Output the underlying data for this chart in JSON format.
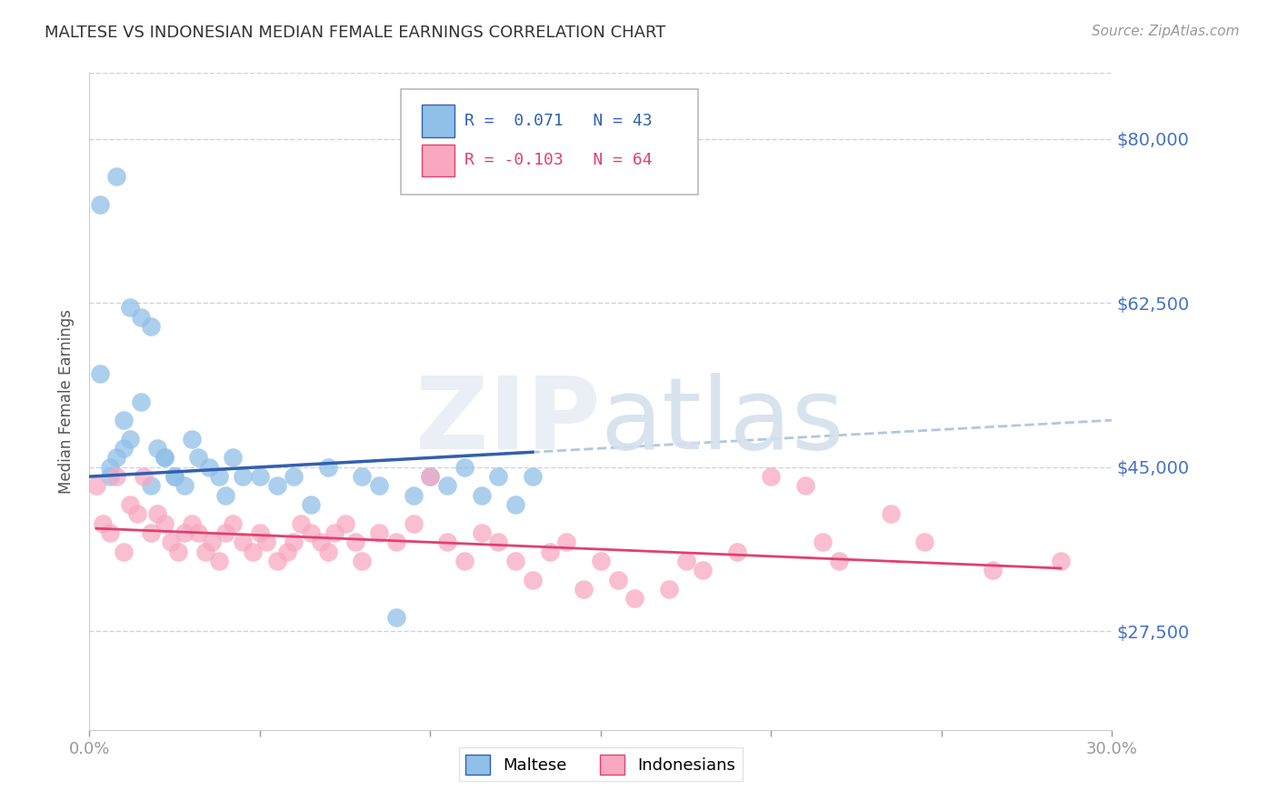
{
  "title": "MALTESE VS INDONESIAN MEDIAN FEMALE EARNINGS CORRELATION CHART",
  "source": "Source: ZipAtlas.com",
  "ylabel": "Median Female Earnings",
  "xlim": [
    0.0,
    0.3
  ],
  "ylim": [
    17000,
    87000
  ],
  "yticks": [
    27500,
    45000,
    62500,
    80000
  ],
  "ytick_labels": [
    "$27,500",
    "$45,000",
    "$62,500",
    "$80,000"
  ],
  "xticks": [
    0.0,
    0.05,
    0.1,
    0.15,
    0.2,
    0.25,
    0.3
  ],
  "xtick_labels": [
    "0.0%",
    "",
    "",
    "",
    "",
    "",
    "30.0%"
  ],
  "watermark": "ZIPatlas",
  "maltese_color": "#90c0e8",
  "indonesian_color": "#f8a8bf",
  "maltese_line_color": "#3060b0",
  "indonesian_line_color": "#e04070",
  "maltese_dashed_color": "#b0c8e0",
  "grid_color": "#c8d4e8",
  "right_label_color": "#4472c4",
  "maltese_scatter_x": [
    0.003,
    0.008,
    0.003,
    0.01,
    0.006,
    0.012,
    0.015,
    0.018,
    0.006,
    0.008,
    0.01,
    0.012,
    0.015,
    0.018,
    0.02,
    0.022,
    0.025,
    0.022,
    0.025,
    0.028,
    0.03,
    0.032,
    0.035,
    0.038,
    0.04,
    0.042,
    0.045,
    0.05,
    0.055,
    0.06,
    0.065,
    0.07,
    0.08,
    0.085,
    0.09,
    0.095,
    0.1,
    0.105,
    0.11,
    0.115,
    0.12,
    0.125,
    0.13
  ],
  "maltese_scatter_y": [
    73000,
    76000,
    55000,
    47000,
    44000,
    62000,
    61000,
    60000,
    45000,
    46000,
    50000,
    48000,
    52000,
    43000,
    47000,
    46000,
    44000,
    46000,
    44000,
    43000,
    48000,
    46000,
    45000,
    44000,
    42000,
    46000,
    44000,
    44000,
    43000,
    44000,
    41000,
    45000,
    44000,
    43000,
    29000,
    42000,
    44000,
    43000,
    45000,
    42000,
    44000,
    41000,
    44000
  ],
  "indonesian_scatter_x": [
    0.002,
    0.004,
    0.006,
    0.008,
    0.01,
    0.012,
    0.014,
    0.016,
    0.018,
    0.02,
    0.022,
    0.024,
    0.026,
    0.028,
    0.03,
    0.032,
    0.034,
    0.036,
    0.038,
    0.04,
    0.042,
    0.045,
    0.048,
    0.05,
    0.052,
    0.055,
    0.058,
    0.06,
    0.062,
    0.065,
    0.068,
    0.07,
    0.072,
    0.075,
    0.078,
    0.08,
    0.085,
    0.09,
    0.095,
    0.1,
    0.105,
    0.11,
    0.115,
    0.12,
    0.125,
    0.13,
    0.135,
    0.14,
    0.145,
    0.15,
    0.155,
    0.16,
    0.17,
    0.175,
    0.18,
    0.19,
    0.2,
    0.21,
    0.215,
    0.22,
    0.235,
    0.245,
    0.265,
    0.285
  ],
  "indonesian_scatter_y": [
    43000,
    39000,
    38000,
    44000,
    36000,
    41000,
    40000,
    44000,
    38000,
    40000,
    39000,
    37000,
    36000,
    38000,
    39000,
    38000,
    36000,
    37000,
    35000,
    38000,
    39000,
    37000,
    36000,
    38000,
    37000,
    35000,
    36000,
    37000,
    39000,
    38000,
    37000,
    36000,
    38000,
    39000,
    37000,
    35000,
    38000,
    37000,
    39000,
    44000,
    37000,
    35000,
    38000,
    37000,
    35000,
    33000,
    36000,
    37000,
    32000,
    35000,
    33000,
    31000,
    32000,
    35000,
    34000,
    36000,
    44000,
    43000,
    37000,
    35000,
    40000,
    37000,
    34000,
    35000
  ]
}
